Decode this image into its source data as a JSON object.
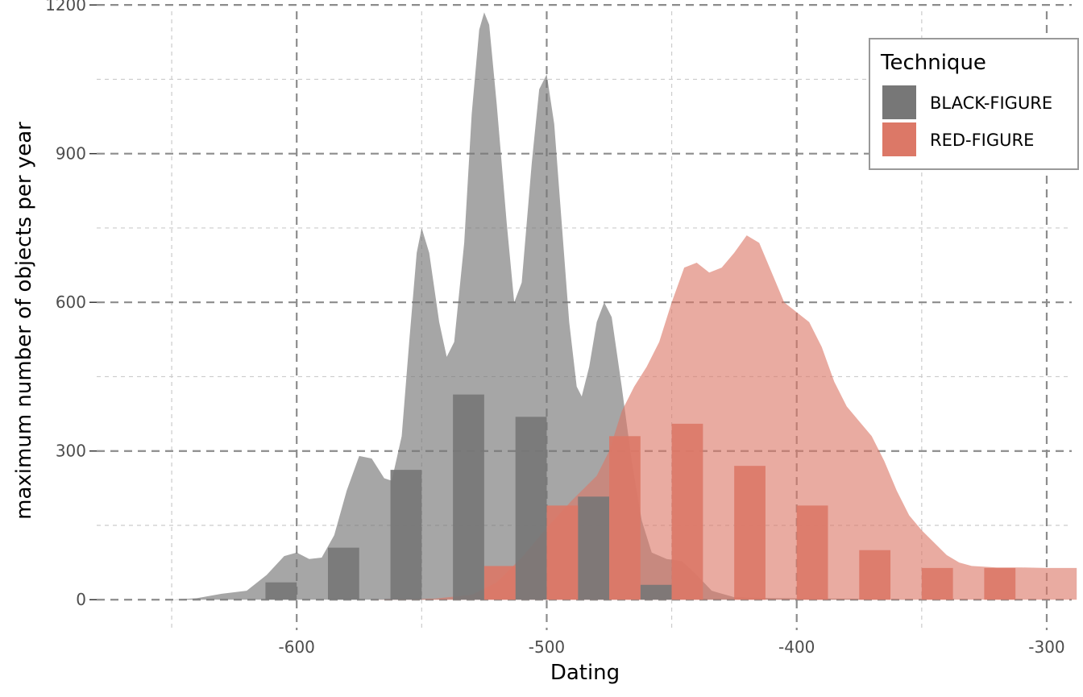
{
  "chart_data": {
    "type": "bar",
    "title": "",
    "xlabel": "Dating",
    "ylabel": "maximum number of objects per year",
    "xlim": [
      -680,
      -290
    ],
    "ylim": [
      -50,
      1210
    ],
    "x_ticks": [
      -600,
      -500,
      -400,
      -300
    ],
    "x_tick_labels": [
      "-600",
      "-500",
      "-400",
      "-300"
    ],
    "y_ticks": [
      0,
      300,
      600,
      900,
      1200
    ],
    "y_tick_labels": [
      "0",
      "300",
      "600",
      "900",
      "1200"
    ],
    "grid": true,
    "legend": {
      "title": "Technique",
      "placement": "top-right",
      "entries": [
        {
          "label": "BLACK-FIGURE",
          "color": "#777777"
        },
        {
          "label": "RED-FIGURE",
          "color": "#dc7867"
        }
      ]
    },
    "bin_width": 12.5,
    "series": [
      {
        "name": "BLACK-FIGURE",
        "color": "#777777",
        "bars": [
          {
            "x": -606.25,
            "value": 35
          },
          {
            "x": -581.25,
            "value": 105
          },
          {
            "x": -556.25,
            "value": 262
          },
          {
            "x": -531.25,
            "value": 414
          },
          {
            "x": -506.25,
            "value": 369
          },
          {
            "x": -481.25,
            "value": 208
          },
          {
            "x": -456.25,
            "value": 30
          }
        ],
        "density": [
          [
            -650,
            0
          ],
          [
            -640,
            3
          ],
          [
            -630,
            12
          ],
          [
            -620,
            18
          ],
          [
            -612,
            50
          ],
          [
            -605,
            88
          ],
          [
            -600,
            95
          ],
          [
            -595,
            82
          ],
          [
            -590,
            85
          ],
          [
            -585,
            130
          ],
          [
            -580,
            220
          ],
          [
            -575,
            290
          ],
          [
            -570,
            285
          ],
          [
            -565,
            245
          ],
          [
            -562,
            240
          ],
          [
            -558,
            330
          ],
          [
            -555,
            520
          ],
          [
            -552,
            700
          ],
          [
            -550,
            750
          ],
          [
            -547,
            700
          ],
          [
            -543,
            560
          ],
          [
            -540,
            490
          ],
          [
            -537,
            520
          ],
          [
            -533,
            720
          ],
          [
            -530,
            980
          ],
          [
            -527,
            1150
          ],
          [
            -525,
            1185
          ],
          [
            -523,
            1160
          ],
          [
            -520,
            1000
          ],
          [
            -516,
            760
          ],
          [
            -513,
            600
          ],
          [
            -510,
            640
          ],
          [
            -506,
            880
          ],
          [
            -503,
            1030
          ],
          [
            -500,
            1060
          ],
          [
            -497,
            960
          ],
          [
            -494,
            760
          ],
          [
            -491,
            560
          ],
          [
            -488,
            430
          ],
          [
            -486,
            410
          ],
          [
            -483,
            470
          ],
          [
            -480,
            560
          ],
          [
            -477,
            600
          ],
          [
            -474,
            570
          ],
          [
            -470,
            430
          ],
          [
            -466,
            280
          ],
          [
            -462,
            160
          ],
          [
            -458,
            95
          ],
          [
            -452,
            82
          ],
          [
            -446,
            78
          ],
          [
            -440,
            50
          ],
          [
            -434,
            18
          ],
          [
            -425,
            5
          ],
          [
            -410,
            3
          ],
          [
            -380,
            2
          ],
          [
            -350,
            0
          ]
        ]
      },
      {
        "name": "RED-FIGURE",
        "color": "#dc7867",
        "bars": [
          {
            "x": -518.75,
            "value": 68
          },
          {
            "x": -493.75,
            "value": 190
          },
          {
            "x": -468.75,
            "value": 330
          },
          {
            "x": -443.75,
            "value": 355
          },
          {
            "x": -418.75,
            "value": 270
          },
          {
            "x": -393.75,
            "value": 190
          },
          {
            "x": -368.75,
            "value": 100
          },
          {
            "x": -343.75,
            "value": 64
          },
          {
            "x": -318.75,
            "value": 64
          }
        ],
        "density": [
          [
            -570,
            0
          ],
          [
            -545,
            2
          ],
          [
            -530,
            10
          ],
          [
            -520,
            35
          ],
          [
            -510,
            85
          ],
          [
            -500,
            145
          ],
          [
            -490,
            200
          ],
          [
            -480,
            250
          ],
          [
            -475,
            300
          ],
          [
            -470,
            380
          ],
          [
            -465,
            430
          ],
          [
            -460,
            470
          ],
          [
            -455,
            520
          ],
          [
            -450,
            600
          ],
          [
            -445,
            670
          ],
          [
            -440,
            680
          ],
          [
            -435,
            660
          ],
          [
            -430,
            670
          ],
          [
            -425,
            700
          ],
          [
            -420,
            735
          ],
          [
            -415,
            720
          ],
          [
            -410,
            660
          ],
          [
            -405,
            600
          ],
          [
            -400,
            580
          ],
          [
            -395,
            560
          ],
          [
            -390,
            510
          ],
          [
            -385,
            440
          ],
          [
            -380,
            390
          ],
          [
            -375,
            360
          ],
          [
            -370,
            330
          ],
          [
            -365,
            280
          ],
          [
            -360,
            220
          ],
          [
            -355,
            170
          ],
          [
            -350,
            140
          ],
          [
            -345,
            115
          ],
          [
            -340,
            90
          ],
          [
            -335,
            75
          ],
          [
            -330,
            68
          ],
          [
            -320,
            65
          ],
          [
            -310,
            65
          ],
          [
            -300,
            64
          ],
          [
            -288,
            64
          ]
        ]
      }
    ]
  }
}
